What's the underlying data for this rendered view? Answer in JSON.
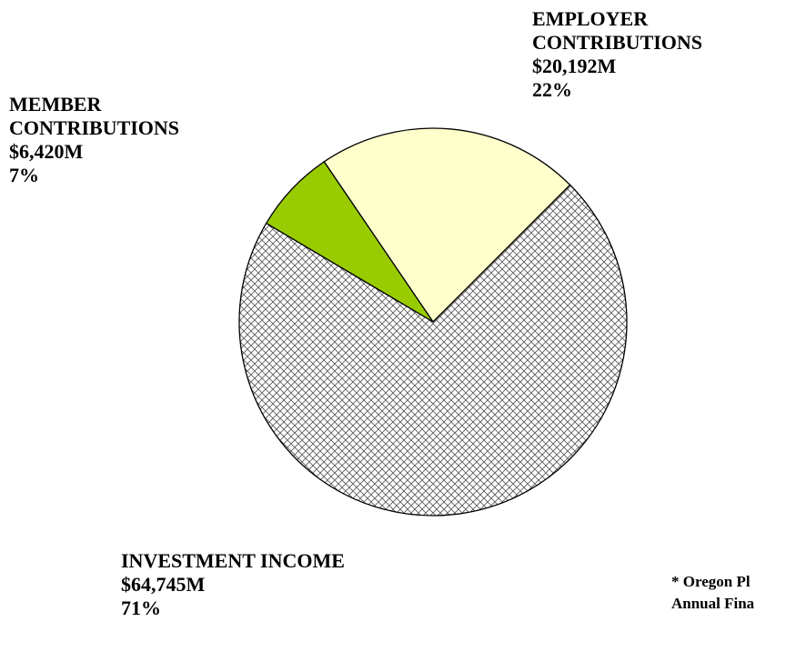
{
  "chart_data": {
    "type": "pie",
    "categories": [
      "EMPLOYER CONTRIBUTIONS",
      "MEMBER CONTRIBUTIONS",
      "INVESTMENT INCOME"
    ],
    "amount_labels": [
      "$20,192M",
      "$6,420M",
      "$64,745M"
    ],
    "values": [
      22,
      7,
      71
    ],
    "value_labels": [
      "22%",
      "7%",
      "71%"
    ],
    "colors": [
      "#ffffcc",
      "#99cc00",
      "#ffffff"
    ],
    "hatch": [
      false,
      false,
      true
    ],
    "note": [
      "* Oregon Pl",
      "Annual Fina"
    ]
  }
}
